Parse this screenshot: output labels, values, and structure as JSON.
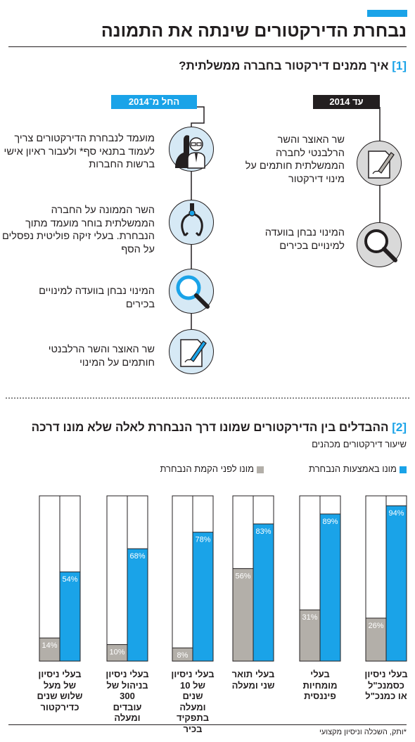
{
  "header": {
    "title": "נבחרת הדירקטורים שינתה את התמונה"
  },
  "section1": {
    "number": "[1]",
    "title": "איך ממנים דירקטור בחברה ממשלתית?",
    "after_tag": "החל מ־2014",
    "before_tag": "עד 2014",
    "after_steps": [
      {
        "text": "מועמד לנבחרת הדירקטורים צריך לעמוד בתנאי סף* ולעבור ראיון אישי ברשות החברות",
        "icon": "businessman-icon"
      },
      {
        "text": "השר הממונה על החברה הממשלתית בוחר מועמד מתוך הנבחרת. בעלי זיקה פוליטית נפסלים על הסף",
        "icon": "claw-grabber-icon"
      },
      {
        "text": "המינוי נבחן בוועדה למינויים בכירים",
        "icon": "magnifier-icon"
      },
      {
        "text": "שר האוצר והשר הרלבנטי חותמים על המינוי",
        "icon": "pen-signing-icon"
      }
    ],
    "before_steps": [
      {
        "text": "שר האוצר והשר הרלבנטי לחברה הממשלתית חותמים על מינוי דירקטור",
        "icon": "pen-signing-icon"
      },
      {
        "text": "המינוי נבחן בוועדה למינויים בכירים",
        "icon": "magnifier-icon"
      }
    ]
  },
  "section2": {
    "number": "[2]",
    "title": "ההבדלים בין הדירקטורים שמונו דרך הנבחרת לאלה שלא מונו דרכה",
    "subtitle": "שיעור דירקטורים מכהנים"
  },
  "colors": {
    "blue": "#1aa3e8",
    "gray": "#b3afa9",
    "dark": "#231f20",
    "circle_blue": "#d6e9f5",
    "circle_gray": "#d9d9d9"
  },
  "chart_data": {
    "type": "bar",
    "ylim": [
      0,
      100
    ],
    "categories": [
      "בעלי ניסיון כסמנכ\"ל או כמנכ\"ל",
      "בעלי מומחיות פיננסית",
      "בעלי תואר שני ומעלה",
      "בעלי ניסיון של 10 שנים ומעלה בתפקיד בכיר",
      "בעלי ניסיון בניהול של 300 עובדים ומעלה",
      "בעלי ניסיון של מעל שלוש שנים כדירקטור"
    ],
    "series": [
      {
        "name": "מונו באמצעות הנבחרת",
        "color": "#1aa3e8",
        "values": [
          94,
          89,
          83,
          78,
          68,
          54
        ]
      },
      {
        "name": "מונו לפני הקמת הנבחרת",
        "color": "#b3afa9",
        "values": [
          26,
          31,
          56,
          8,
          10,
          14
        ]
      }
    ],
    "value_labels": {
      "selected": [
        "94%",
        "89%",
        "83%",
        "78%",
        "68%",
        "54%"
      ],
      "before": [
        "26%",
        "31%",
        "56%",
        "8%",
        "10%",
        "14%"
      ]
    }
  },
  "footnote": "*ותק, השכלה וניסיון מקצועי"
}
